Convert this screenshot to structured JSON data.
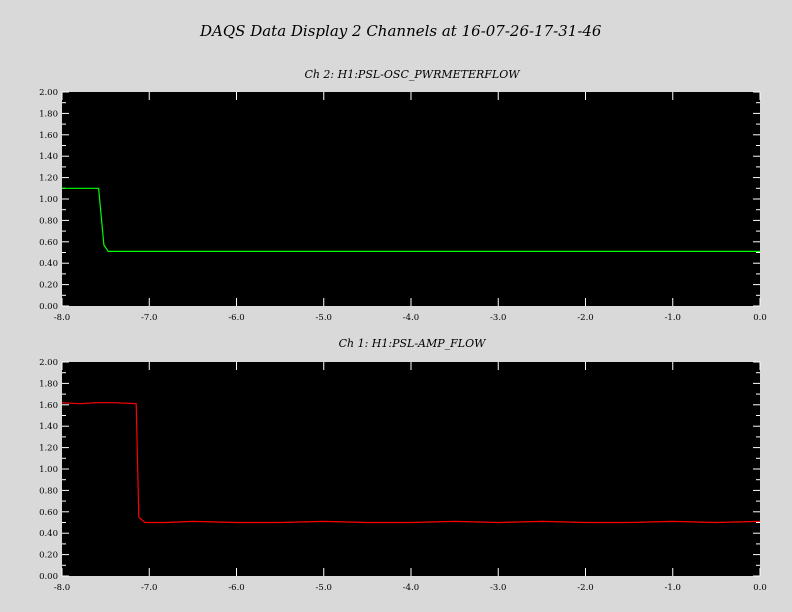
{
  "title": "DAQS Data Display 2 Channels at 16-07-26-17-31-46",
  "colors": {
    "background": "#d9d9d9",
    "plot_bg": "#000000",
    "ch2_line": "#00ff00",
    "ch1_line": "#ff0000"
  },
  "chart_data": [
    {
      "type": "line",
      "title": "Ch 2:  H1:PSL-OSC_PWRMETERFLOW",
      "xlim": [
        -8.0,
        0.0
      ],
      "ylim": [
        0.0,
        2.0
      ],
      "xticks": [
        "-8.0",
        "-7.0",
        "-6.0",
        "-5.0",
        "-4.0",
        "-3.0",
        "-2.0",
        "-1.0",
        "0.0"
      ],
      "yticks": [
        "0.00",
        "0.20",
        "0.40",
        "0.60",
        "0.80",
        "1.00",
        "1.20",
        "1.40",
        "1.60",
        "1.80",
        "2.00"
      ],
      "series": [
        {
          "color": "#00ff00",
          "x": [
            -8.0,
            -7.58,
            -7.52,
            -7.47,
            -7.4,
            -6.0,
            -4.0,
            -2.0,
            0.0
          ],
          "y": [
            1.1,
            1.1,
            0.57,
            0.51,
            0.51,
            0.51,
            0.51,
            0.51,
            0.51
          ]
        }
      ]
    },
    {
      "type": "line",
      "title": "Ch 1:  H1:PSL-AMP_FLOW",
      "xlim": [
        -8.0,
        0.0
      ],
      "ylim": [
        0.0,
        2.0
      ],
      "xticks": [
        "-8.0",
        "-7.0",
        "-6.0",
        "-5.0",
        "-4.0",
        "-3.0",
        "-2.0",
        "-1.0",
        "0.0"
      ],
      "yticks": [
        "0.00",
        "0.20",
        "0.40",
        "0.60",
        "0.80",
        "1.00",
        "1.20",
        "1.40",
        "1.60",
        "1.80",
        "2.00"
      ],
      "series": [
        {
          "color": "#ff0000",
          "x": [
            -8.0,
            -7.8,
            -7.6,
            -7.4,
            -7.15,
            -7.12,
            -7.05,
            -6.8,
            -6.5,
            -6.0,
            -5.5,
            -5.0,
            -4.5,
            -4.0,
            -3.5,
            -3.0,
            -2.5,
            -2.0,
            -1.5,
            -1.0,
            -0.5,
            0.0
          ],
          "y": [
            1.62,
            1.61,
            1.62,
            1.62,
            1.61,
            0.55,
            0.5,
            0.5,
            0.51,
            0.5,
            0.5,
            0.51,
            0.5,
            0.5,
            0.51,
            0.5,
            0.51,
            0.5,
            0.5,
            0.51,
            0.5,
            0.51
          ]
        }
      ]
    }
  ]
}
